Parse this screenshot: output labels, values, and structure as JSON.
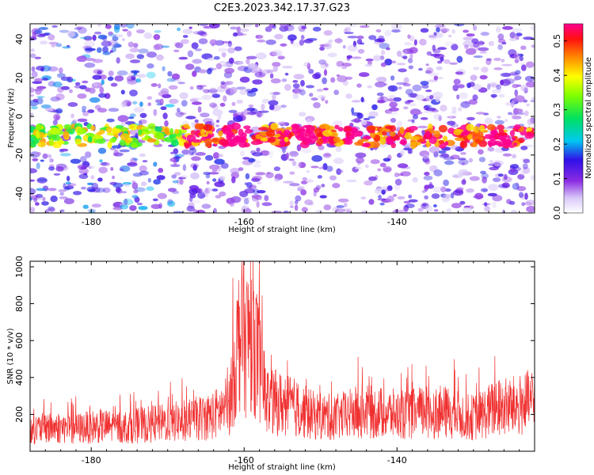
{
  "title": "C2E3.2023.342.17.37.G23",
  "chart_data": [
    {
      "type": "heatmap",
      "xlabel": "Height of straight line (km)",
      "ylabel": "Frequency (Hz)",
      "xlim": [
        -188,
        -122
      ],
      "ylim": [
        -50,
        48
      ],
      "xticks": [
        -180,
        -160,
        -140
      ],
      "yticks": [
        -40,
        -20,
        0,
        20,
        40
      ],
      "colorbar": {
        "label": "Normalized spectral amplitude",
        "range": [
          0,
          0.55
        ],
        "ticks": [
          0.0,
          0.1,
          0.2,
          0.3,
          0.4,
          0.5
        ],
        "colormap": "rainbow (white-violet-blue-cyan-green-yellow-red-magenta)"
      },
      "features": [
        {
          "description": "horizontal band of strong amplitude",
          "frequency_hz": -10,
          "x_range_km": [
            -188,
            -122
          ]
        },
        {
          "description": "band maximum near 0.4-0.45",
          "x_km": [
            -161,
            -152,
            -146,
            -127
          ]
        }
      ],
      "grid": false
    },
    {
      "type": "line",
      "xlabel": "Height of straight line (km)",
      "ylabel": "SNR (10 * v/v)",
      "xlim": [
        -188,
        -122
      ],
      "ylim": [
        0,
        1030
      ],
      "xticks": [
        -180,
        -160,
        -140
      ],
      "yticks": [
        200,
        400,
        600,
        800,
        1000
      ],
      "color": "#f03030",
      "series": [
        {
          "x": [
            -188,
            -185,
            -182,
            -179,
            -176,
            -173,
            -170,
            -167,
            -164,
            -162,
            -160.5,
            -159.8,
            -159,
            -157,
            -154,
            -151,
            -148,
            -145,
            -142,
            -139,
            -136,
            -133,
            -130,
            -127,
            -124,
            -122
          ],
          "values": [
            180,
            200,
            190,
            210,
            200,
            220,
            240,
            260,
            300,
            380,
            1020,
            900,
            1010,
            420,
            380,
            300,
            280,
            330,
            320,
            300,
            330,
            320,
            280,
            360,
            380,
            420
          ]
        }
      ],
      "grid": false
    }
  ]
}
